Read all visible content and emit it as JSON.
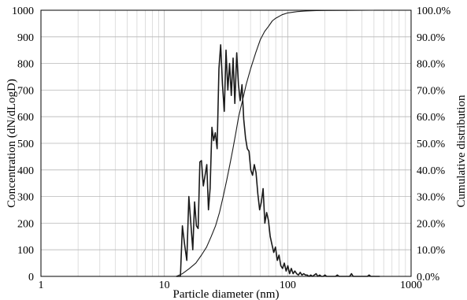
{
  "chart_data": {
    "type": "line",
    "xlabel": "Particle diameter (nm)",
    "ylabel": "Concentration (dN/dLogD)",
    "y2label": "Cumulative distribution",
    "x_scale": "log",
    "xlim": [
      1,
      1000
    ],
    "ylim": [
      0,
      1000
    ],
    "y2lim": [
      0,
      100
    ],
    "grid": true,
    "x_ticks": [
      "1",
      "10",
      "100",
      "1000"
    ],
    "y_ticks": [
      "0",
      "100",
      "200",
      "300",
      "400",
      "500",
      "600",
      "700",
      "800",
      "900",
      "1000"
    ],
    "y2_ticks": [
      "0.0%",
      "10.0%",
      "20.0%",
      "30.0%",
      "40.0%",
      "50.0%",
      "60.0%",
      "70.0%",
      "80.0%",
      "90.0%",
      "100.0%"
    ],
    "series": [
      {
        "axis": "left",
        "x": [
          12.5,
          13.5,
          14.0,
          14.6,
          15.2,
          15.8,
          16.4,
          17.0,
          17.6,
          18.2,
          18.8,
          19.4,
          20.0,
          20.7,
          21.4,
          22.1,
          22.8,
          23.5,
          24.3,
          25.1,
          25.9,
          26.8,
          27.7,
          28.6,
          29.6,
          30.6,
          31.6,
          32.7,
          33.8,
          34.9,
          36.1,
          37.3,
          38.6,
          39.9,
          41.2,
          42.6,
          44.0,
          45.5,
          47.0,
          48.6,
          50.2,
          51.9,
          53.6,
          55.4,
          57.3,
          59.2,
          61.2,
          63.2,
          65.3,
          67.5,
          69.8,
          72.1,
          74.5,
          77.0,
          79.6,
          82.3,
          85.0,
          87.9,
          90.8,
          93.8,
          97.0,
          100.2,
          103.6,
          107.0,
          110.6,
          114.3,
          118.2,
          122.1,
          126.2,
          130.5,
          134.8,
          139.4,
          144.0,
          148.8,
          153.8,
          159.0,
          164.3,
          169.8,
          175.5,
          181.4,
          187.5,
          193.8,
          200.3,
          207.0,
          214.0,
          221.1,
          228.6,
          236.2,
          244.2,
          252.3,
          260.8,
          269.6,
          278.6,
          287.9,
          297.6,
          307.6,
          317.9,
          328.5,
          339.6,
          350.9,
          362.7,
          374.9,
          387.4,
          400.4,
          413.9,
          427.8,
          442.1,
          456.9,
          472.2,
          488.1,
          504.4,
          521.4,
          538.8,
          556.9
        ],
        "values": [
          0,
          0,
          190,
          120,
          60,
          300,
          200,
          100,
          280,
          190,
          180,
          430,
          435,
          340,
          380,
          420,
          250,
          330,
          560,
          510,
          540,
          480,
          780,
          870,
          720,
          620,
          850,
          700,
          800,
          680,
          820,
          650,
          840,
          720,
          660,
          720,
          590,
          520,
          480,
          470,
          400,
          380,
          420,
          390,
          310,
          250,
          280,
          330,
          200,
          240,
          210,
          150,
          120,
          90,
          110,
          60,
          80,
          40,
          30,
          50,
          20,
          40,
          10,
          30,
          10,
          20,
          10,
          5,
          15,
          5,
          10,
          5,
          5,
          0,
          5,
          0,
          5,
          10,
          0,
          5,
          0,
          0,
          5,
          0,
          0,
          0,
          0,
          0,
          0,
          5,
          0,
          0,
          0,
          0,
          0,
          0,
          0,
          10,
          0,
          0,
          0,
          0,
          0,
          0,
          0,
          0,
          0,
          5,
          0,
          0,
          0,
          0,
          0,
          0
        ]
      },
      {
        "axis": "right",
        "x": [
          12.5,
          14,
          16,
          18,
          20,
          22,
          24,
          26,
          28,
          30,
          32,
          34,
          36,
          38,
          40,
          43,
          46,
          50,
          55,
          60,
          65,
          70,
          75,
          80,
          90,
          100,
          120,
          140,
          170,
          200,
          300,
          500
        ],
        "values": [
          0,
          1,
          3,
          5,
          8,
          11,
          15,
          19,
          24,
          30,
          36,
          42,
          48,
          54,
          60,
          66,
          72,
          78,
          84,
          89,
          92,
          94,
          96,
          97,
          98.3,
          99,
          99.5,
          99.7,
          99.85,
          99.9,
          99.95,
          100
        ]
      }
    ]
  }
}
